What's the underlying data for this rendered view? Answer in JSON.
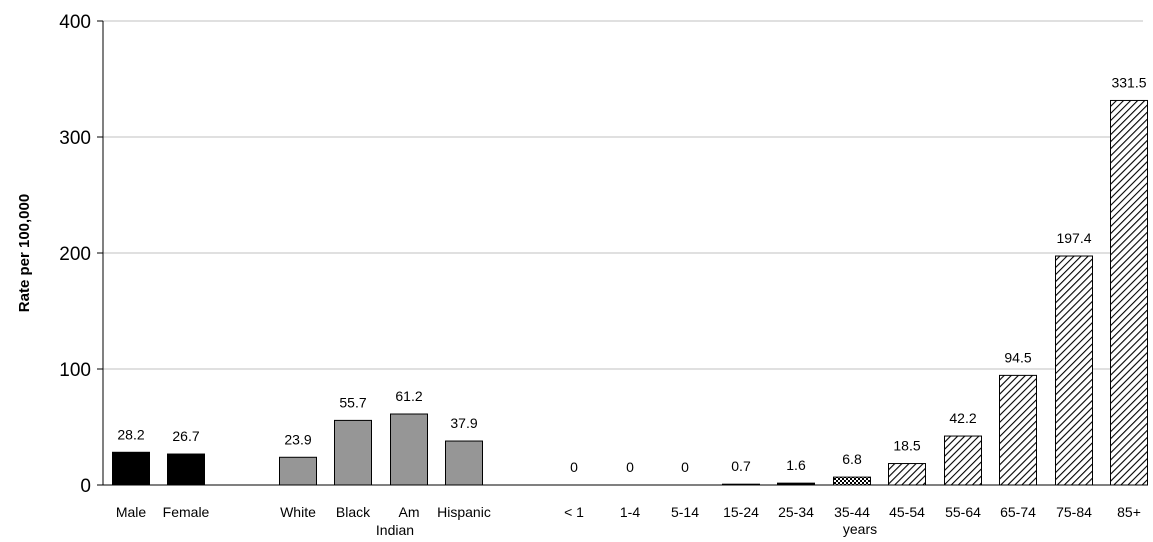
{
  "chart_data": {
    "type": "bar",
    "title": "",
    "xlabel": "",
    "ylabel": "Rate per 100,000",
    "ylim": [
      0,
      400
    ],
    "yticks": [
      0,
      100,
      200,
      300,
      400
    ],
    "grid": true,
    "legend": "none",
    "categories": [
      "Male",
      "Female",
      "White",
      "Black",
      "Am Indian",
      "Hispanic",
      "< 1",
      "1-4",
      "5-14",
      "15-24",
      "25-34",
      "35-44",
      "45-54",
      "55-64",
      "65-74",
      "75-84",
      "85+"
    ],
    "values": [
      28.2,
      26.7,
      23.9,
      55.7,
      61.2,
      37.9,
      0,
      0,
      0,
      0.7,
      1.6,
      6.8,
      18.5,
      42.2,
      94.5,
      197.4,
      331.5
    ],
    "value_labels": [
      "28.2",
      "26.7",
      "23.9",
      "55.7",
      "61.2",
      "37.9",
      "0",
      "0",
      "0",
      "0.7",
      "1.6",
      "6.8",
      "18.5",
      "42.2",
      "94.5",
      "197.4",
      "331.5"
    ],
    "group_annotation": "years",
    "colors": {
      "sex": "#000000",
      "race": "#969696",
      "age_solid": "#000000",
      "age_dotted": "#c8c8c8",
      "age_hatched": "#ffffff",
      "gridline": "#c0c0c0",
      "axis": "#000000"
    }
  }
}
